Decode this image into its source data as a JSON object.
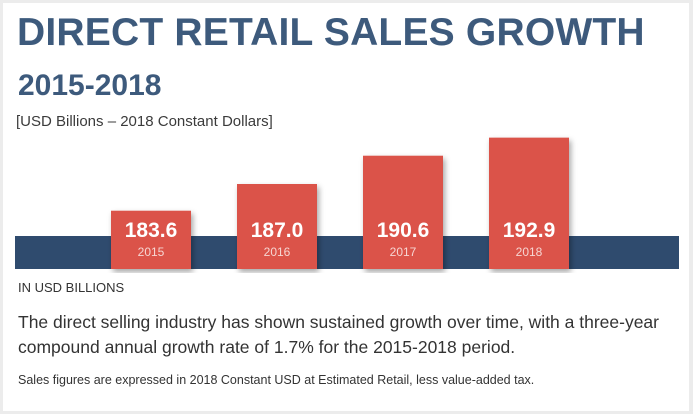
{
  "header": {
    "title": "DIRECT RETAIL SALES GROWTH",
    "subtitle": "2015-2018",
    "unit_note": "[USD Billions – 2018 Constant Dollars]"
  },
  "chart_data": {
    "type": "bar",
    "categories": [
      "2015",
      "2016",
      "2017",
      "2018"
    ],
    "values": [
      183.6,
      187.0,
      190.6,
      192.9
    ],
    "value_labels": [
      "183.6",
      "187.0",
      "190.6",
      "192.9"
    ],
    "title": "DIRECT RETAIL SALES GROWTH 2015-2018",
    "xlabel": "",
    "ylabel": "IN USD BILLIONS",
    "ylim": [
      180,
      194
    ],
    "grid": false,
    "legend": "none"
  },
  "footer": {
    "axis_note": "IN USD BILLIONS",
    "description": "The direct selling industry has shown sustained growth over time, with a three-year compound annual growth rate of 1.7% for the 2015-2018 period.",
    "footnote": "Sales figures are expressed in 2018 Constant USD at Estimated Retail, less value-added tax."
  },
  "colors": {
    "title": "#3d5a7c",
    "bar": "#db5249",
    "band": "#2f4b6e",
    "bar_text": "#ffffff",
    "year_text": "#f6d5d2"
  }
}
